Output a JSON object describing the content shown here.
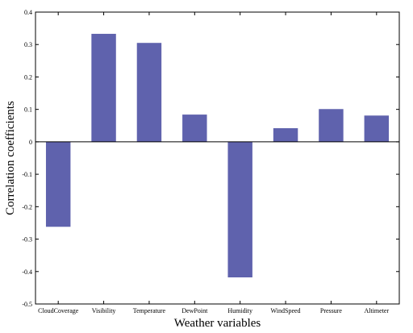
{
  "chart_data": {
    "type": "bar",
    "title": "",
    "xlabel": "Weather variables",
    "ylabel": "Correlation coefficients",
    "categories": [
      "CloudCoverage",
      "Visibility",
      "Temperature",
      "DewPoint",
      "Humidity",
      "WindSpeed",
      "Pressure",
      "Altimeter"
    ],
    "values": [
      -0.262,
      0.333,
      0.305,
      0.084,
      -0.418,
      0.042,
      0.101,
      0.081
    ],
    "ylim": [
      -0.5,
      0.4
    ],
    "yticks": [
      0.4,
      0.3,
      0.2,
      0.1,
      0,
      -0.1,
      -0.2,
      -0.3,
      -0.4,
      -0.5
    ],
    "ytick_labels": [
      "0.4",
      "0.3",
      "0.2",
      "0.1",
      "0",
      "-0.1",
      "-0.2",
      "-0.3",
      "-0.4",
      "-0.5"
    ],
    "grid": false,
    "legend": "none",
    "bar_color": "#5f62ad",
    "zero_line": true
  }
}
